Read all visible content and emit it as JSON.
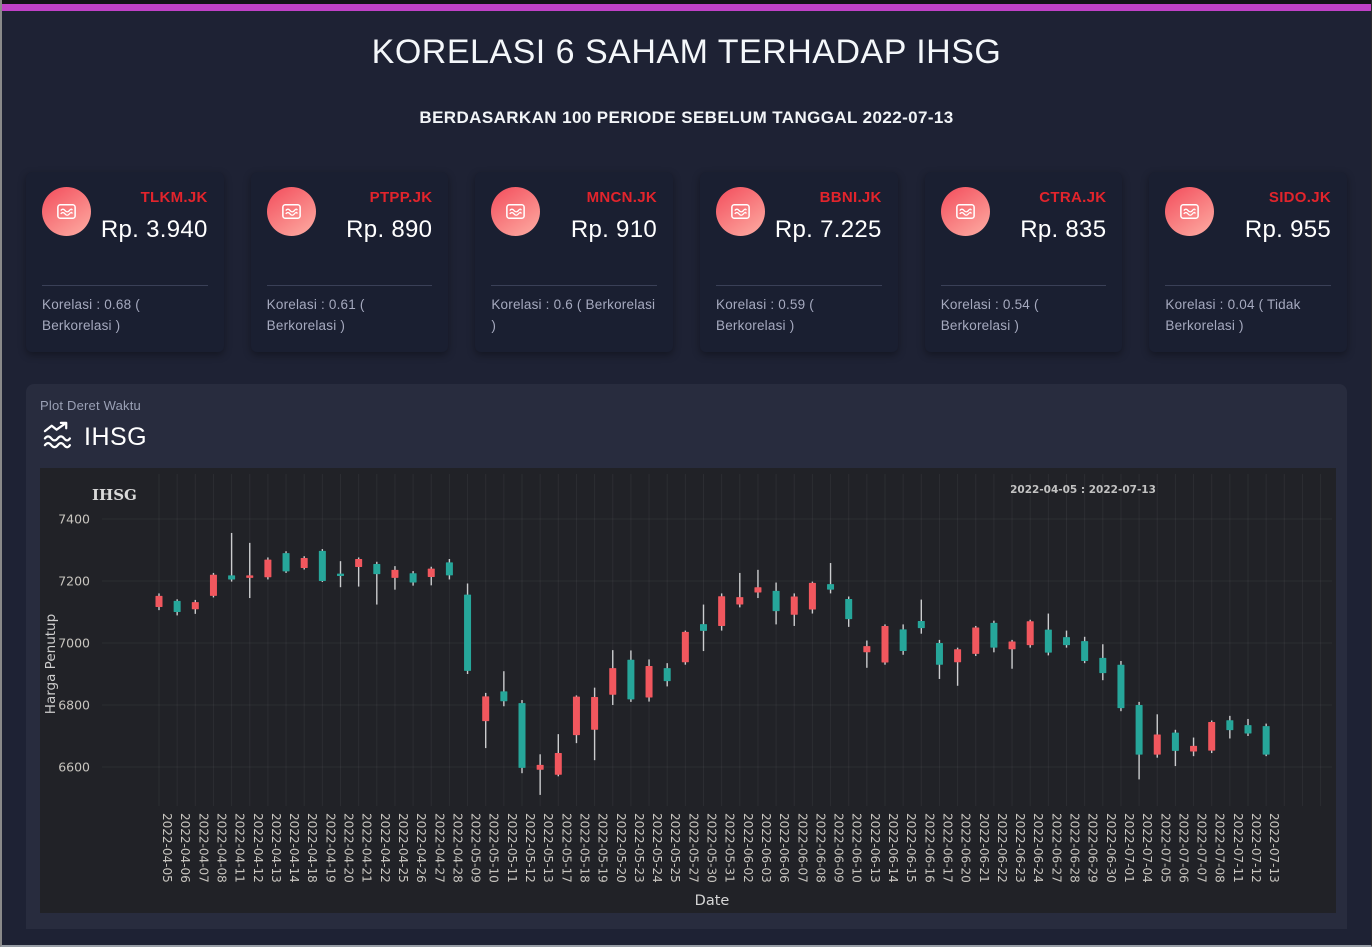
{
  "window": {
    "accent_color": "#c041c7"
  },
  "header": {
    "title": "KORELASI 6 SAHAM TERHADAP IHSG",
    "subtitle": "BERDASARKAN 100 PERIODE SEBELUM TANGGAL 2022-07-13"
  },
  "cards": [
    {
      "ticker": "TLKM.JK",
      "price": "Rp. 3.940",
      "korelasi": "Korelasi : 0.68 ( Berkorelasi )"
    },
    {
      "ticker": "PTPP.JK",
      "price": "Rp. 890",
      "korelasi": "Korelasi : 0.61 ( Berkorelasi )"
    },
    {
      "ticker": "MNCN.JK",
      "price": "Rp. 910",
      "korelasi": "Korelasi : 0.6 ( Berkorelasi )"
    },
    {
      "ticker": "BBNI.JK",
      "price": "Rp. 7.225",
      "korelasi": "Korelasi : 0.59 ( Berkorelasi )"
    },
    {
      "ticker": "CTRA.JK",
      "price": "Rp. 835",
      "korelasi": "Korelasi : 0.54 ( Berkorelasi )"
    },
    {
      "ticker": "SIDO.JK",
      "price": "Rp. 955",
      "korelasi": "Korelasi : 0.04 ( Tidak Berkorelasi )"
    }
  ],
  "panel": {
    "label": "Plot Deret Waktu",
    "title": "IHSG"
  },
  "chart_data": {
    "type": "candlestick",
    "title": "IHSG",
    "annotation": "2022-04-05 : 2022-07-13",
    "xlabel": "Date",
    "ylabel": "Harga Penutup",
    "yticks": [
      7400,
      7200,
      7000,
      6800,
      6600
    ],
    "ylim": [
      6480,
      7560
    ],
    "grid": true,
    "colors": {
      "increasing": "#f1575e",
      "decreasing": "#26a69a",
      "wick": "#cbccce",
      "grid": "rgba(255,255,255,0.05)",
      "plot_bg": "#212227",
      "tick_text": "#c8c5bf"
    },
    "dates": [
      "2022-04-05",
      "2022-04-06",
      "2022-04-07",
      "2022-04-08",
      "2022-04-11",
      "2022-04-12",
      "2022-04-13",
      "2022-04-14",
      "2022-04-18",
      "2022-04-19",
      "2022-04-20",
      "2022-04-21",
      "2022-04-22",
      "2022-04-25",
      "2022-04-26",
      "2022-04-27",
      "2022-04-28",
      "2022-05-09",
      "2022-05-10",
      "2022-05-11",
      "2022-05-12",
      "2022-05-13",
      "2022-05-17",
      "2022-05-18",
      "2022-05-19",
      "2022-05-20",
      "2022-05-23",
      "2022-05-24",
      "2022-05-25",
      "2022-05-27",
      "2022-05-30",
      "2022-05-31",
      "2022-06-02",
      "2022-06-03",
      "2022-06-06",
      "2022-06-07",
      "2022-06-08",
      "2022-06-09",
      "2022-06-10",
      "2022-06-13",
      "2022-06-14",
      "2022-06-15",
      "2022-06-16",
      "2022-06-17",
      "2022-06-20",
      "2022-06-21",
      "2022-06-22",
      "2022-06-23",
      "2022-06-24",
      "2022-06-27",
      "2022-06-28",
      "2022-06-29",
      "2022-06-30",
      "2022-07-01",
      "2022-07-04",
      "2022-07-05",
      "2022-07-06",
      "2022-07-07",
      "2022-07-08",
      "2022-07-11",
      "2022-07-12",
      "2022-07-13"
    ],
    "ohlc": [
      [
        7116,
        7160,
        7106,
        7152
      ],
      [
        7136,
        7141,
        7089,
        7100
      ],
      [
        7109,
        7139,
        7094,
        7132
      ],
      [
        7152,
        7226,
        7147,
        7220
      ],
      [
        7218,
        7355,
        7198,
        7205
      ],
      [
        7210,
        7323,
        7145,
        7218
      ],
      [
        7212,
        7276,
        7205,
        7269
      ],
      [
        7290,
        7296,
        7226,
        7231
      ],
      [
        7242,
        7280,
        7237,
        7274
      ],
      [
        7297,
        7303,
        7197,
        7200
      ],
      [
        7222,
        7264,
        7180,
        7218
      ],
      [
        7245,
        7276,
        7182,
        7271
      ],
      [
        7255,
        7262,
        7124,
        7222
      ],
      [
        7210,
        7248,
        7172,
        7236
      ],
      [
        7225,
        7232,
        7185,
        7195
      ],
      [
        7213,
        7246,
        7186,
        7240
      ],
      [
        7260,
        7271,
        7205,
        7218
      ],
      [
        7156,
        7192,
        6900,
        6910
      ],
      [
        6748,
        6839,
        6661,
        6828
      ],
      [
        6844,
        6909,
        6796,
        6812
      ],
      [
        6806,
        6816,
        6580,
        6597
      ],
      [
        6591,
        6641,
        6510,
        6607
      ],
      [
        6575,
        6706,
        6570,
        6645
      ],
      [
        6703,
        6831,
        6677,
        6827
      ],
      [
        6720,
        6856,
        6622,
        6826
      ],
      [
        6833,
        6977,
        6800,
        6919
      ],
      [
        6946,
        6976,
        6810,
        6818
      ],
      [
        6824,
        6947,
        6811,
        6926
      ],
      [
        6919,
        6935,
        6860,
        6877
      ],
      [
        6938,
        7040,
        6930,
        7036
      ],
      [
        7061,
        7124,
        6974,
        7039
      ],
      [
        7055,
        7160,
        7040,
        7151
      ],
      [
        7124,
        7226,
        7115,
        7148
      ],
      [
        7163,
        7236,
        7145,
        7180
      ],
      [
        7168,
        7195,
        7060,
        7103
      ],
      [
        7091,
        7160,
        7055,
        7150
      ],
      [
        7108,
        7198,
        7095,
        7194
      ],
      [
        7190,
        7258,
        7160,
        7172
      ],
      [
        7142,
        7150,
        7052,
        7077
      ],
      [
        6970,
        7008,
        6920,
        6990
      ],
      [
        6937,
        7060,
        6930,
        7055
      ],
      [
        7044,
        7060,
        6962,
        6974
      ],
      [
        7071,
        7140,
        7030,
        7048
      ],
      [
        7000,
        7010,
        6884,
        6930
      ],
      [
        6938,
        6985,
        6862,
        6980
      ],
      [
        6965,
        7055,
        6958,
        7050
      ],
      [
        7065,
        7072,
        6970,
        6985
      ],
      [
        6980,
        7010,
        6917,
        7005
      ],
      [
        6993,
        7075,
        6985,
        7070
      ],
      [
        7043,
        7095,
        6960,
        6969
      ],
      [
        7019,
        7040,
        6985,
        6993
      ],
      [
        7006,
        7020,
        6935,
        6942
      ],
      [
        6952,
        6996,
        6880,
        6903
      ],
      [
        6930,
        6942,
        6780,
        6790
      ],
      [
        6800,
        6810,
        6560,
        6640
      ],
      [
        6640,
        6770,
        6630,
        6705
      ],
      [
        6711,
        6720,
        6603,
        6652
      ],
      [
        6650,
        6695,
        6635,
        6668
      ],
      [
        6653,
        6750,
        6645,
        6745
      ],
      [
        6751,
        6765,
        6692,
        6719
      ],
      [
        6735,
        6755,
        6700,
        6708
      ],
      [
        6732,
        6740,
        6635,
        6640
      ]
    ]
  }
}
